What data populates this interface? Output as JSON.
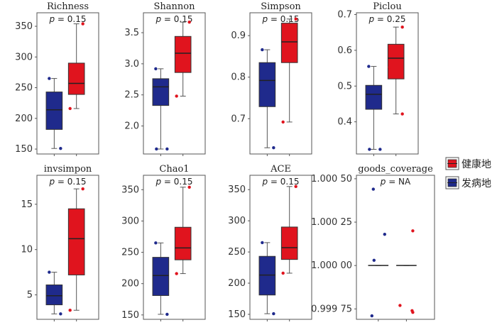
{
  "colors": {
    "healthy": "#e0141e",
    "diseased": "#1f2a8c"
  },
  "legend": {
    "items": [
      {
        "key": "healthy",
        "label": "健康地"
      },
      {
        "key": "diseased",
        "label": "发病地"
      }
    ]
  },
  "chart_data": [
    {
      "type": "box",
      "title": "Richness",
      "pvalue_label": "p",
      "pvalue_text": " = 0.15",
      "ylim": [
        142,
        372
      ],
      "yticks": [
        150,
        200,
        250,
        300,
        350
      ],
      "series": [
        {
          "key": "diseased",
          "q1": 182,
          "median": 214,
          "q3": 243,
          "whisker_low": 151,
          "whisker_high": 265,
          "points": [
            265,
            151
          ]
        },
        {
          "key": "healthy",
          "q1": 239,
          "median": 257,
          "q3": 290,
          "whisker_low": 216,
          "whisker_high": 354,
          "points": [
            354,
            216
          ]
        }
      ]
    },
    {
      "type": "box",
      "title": "Shannon",
      "pvalue_label": "p",
      "pvalue_text": " = 0.15",
      "ylim": [
        1.55,
        3.82
      ],
      "yticks": [
        2.0,
        2.5,
        3.0,
        3.5
      ],
      "tick_decimals": 1,
      "series": [
        {
          "key": "diseased",
          "q1": 2.33,
          "median": 2.63,
          "q3": 2.76,
          "whisker_low": 1.63,
          "whisker_high": 2.92,
          "points": [
            2.92,
            1.63,
            1.63
          ]
        },
        {
          "key": "healthy",
          "q1": 2.86,
          "median": 3.17,
          "q3": 3.44,
          "whisker_low": 2.48,
          "whisker_high": 3.67,
          "points": [
            3.67,
            2.48
          ]
        }
      ]
    },
    {
      "type": "box",
      "title": "Simpson",
      "pvalue_label": "p",
      "pvalue_text": " = 0.15",
      "ylim": [
        0.615,
        0.955
      ],
      "yticks": [
        0.7,
        0.8,
        0.9
      ],
      "tick_decimals": 1,
      "series": [
        {
          "key": "diseased",
          "q1": 0.729,
          "median": 0.792,
          "q3": 0.835,
          "whisker_low": 0.63,
          "whisker_high": 0.866,
          "points": [
            0.866,
            0.63
          ]
        },
        {
          "key": "healthy",
          "q1": 0.835,
          "median": 0.885,
          "q3": 0.93,
          "whisker_low": 0.692,
          "whisker_high": 0.94,
          "points": [
            0.94,
            0.692
          ]
        }
      ]
    },
    {
      "type": "box",
      "title": "Piclou",
      "pvalue_label": "p",
      "pvalue_text": " = 0.25",
      "ylim": [
        0.31,
        0.705
      ],
      "yticks": [
        0.4,
        0.5,
        0.6,
        0.7
      ],
      "tick_decimals": 1,
      "series": [
        {
          "key": "diseased",
          "q1": 0.435,
          "median": 0.477,
          "q3": 0.502,
          "whisker_low": 0.323,
          "whisker_high": 0.555,
          "points": [
            0.555,
            0.323,
            0.323
          ]
        },
        {
          "key": "healthy",
          "q1": 0.52,
          "median": 0.578,
          "q3": 0.617,
          "whisker_low": 0.422,
          "whisker_high": 0.665,
          "points": [
            0.665,
            0.553,
            0.422
          ]
        }
      ]
    },
    {
      "type": "box",
      "title": "invsimpon",
      "pvalue_label": "p",
      "pvalue_text": " = 0.15",
      "ylim": [
        2.3,
        18.2
      ],
      "yticks": [
        5,
        10,
        15
      ],
      "series": [
        {
          "key": "diseased",
          "q1": 3.9,
          "median": 4.9,
          "q3": 6.1,
          "whisker_low": 2.9,
          "whisker_high": 7.5,
          "points": [
            7.5,
            2.9
          ]
        },
        {
          "key": "healthy",
          "q1": 7.2,
          "median": 11.2,
          "q3": 14.5,
          "whisker_low": 3.3,
          "whisker_high": 16.7,
          "points": [
            16.7,
            3.3
          ]
        }
      ]
    },
    {
      "type": "box",
      "title": "Chao1",
      "pvalue_label": "p",
      "pvalue_text": " = 0.15",
      "ylim": [
        143,
        373
      ],
      "yticks": [
        150,
        200,
        250,
        300,
        350
      ],
      "series": [
        {
          "key": "diseased",
          "q1": 181,
          "median": 213,
          "q3": 242,
          "whisker_low": 151,
          "whisker_high": 265,
          "points": [
            265,
            151
          ]
        },
        {
          "key": "healthy",
          "q1": 238,
          "median": 257,
          "q3": 290,
          "whisker_low": 216,
          "whisker_high": 354,
          "points": [
            354,
            216
          ]
        }
      ]
    },
    {
      "type": "box",
      "title": "ACE",
      "pvalue_label": "p",
      "pvalue_text": " = 0.15",
      "ylim": [
        142,
        373
      ],
      "yticks": [
        150,
        200,
        250,
        300,
        350
      ],
      "series": [
        {
          "key": "diseased",
          "q1": 181,
          "median": 213,
          "q3": 243,
          "whisker_low": 151,
          "whisker_high": 265,
          "points": [
            265,
            151
          ]
        },
        {
          "key": "healthy",
          "q1": 238,
          "median": 257,
          "q3": 290,
          "whisker_low": 216,
          "whisker_high": 355,
          "points": [
            355,
            216
          ]
        }
      ]
    },
    {
      "type": "box",
      "title": "goods_coverage",
      "pvalue_label": "p",
      "pvalue_text": " = NA",
      "ylim": [
        0.99969,
        1.00052
      ],
      "yticks": [
        0.99975,
        1.0,
        1.00025,
        1.0005
      ],
      "tick_labels": [
        "0.999 75",
        "1.000 00",
        "1.000 25",
        "1.000 50"
      ],
      "series": [
        {
          "key": "diseased",
          "q1": 1.0,
          "median": 1.0,
          "q3": 1.0,
          "whisker_low": 1.0,
          "whisker_high": 1.0,
          "points": [
            1.00044,
            1.00018,
            1.00003,
            0.99971
          ]
        },
        {
          "key": "healthy",
          "q1": 1.0,
          "median": 1.0,
          "q3": 1.0,
          "whisker_low": 1.0,
          "whisker_high": 1.0,
          "points": [
            1.0002,
            0.99977,
            0.99973,
            0.99974
          ]
        }
      ]
    }
  ]
}
